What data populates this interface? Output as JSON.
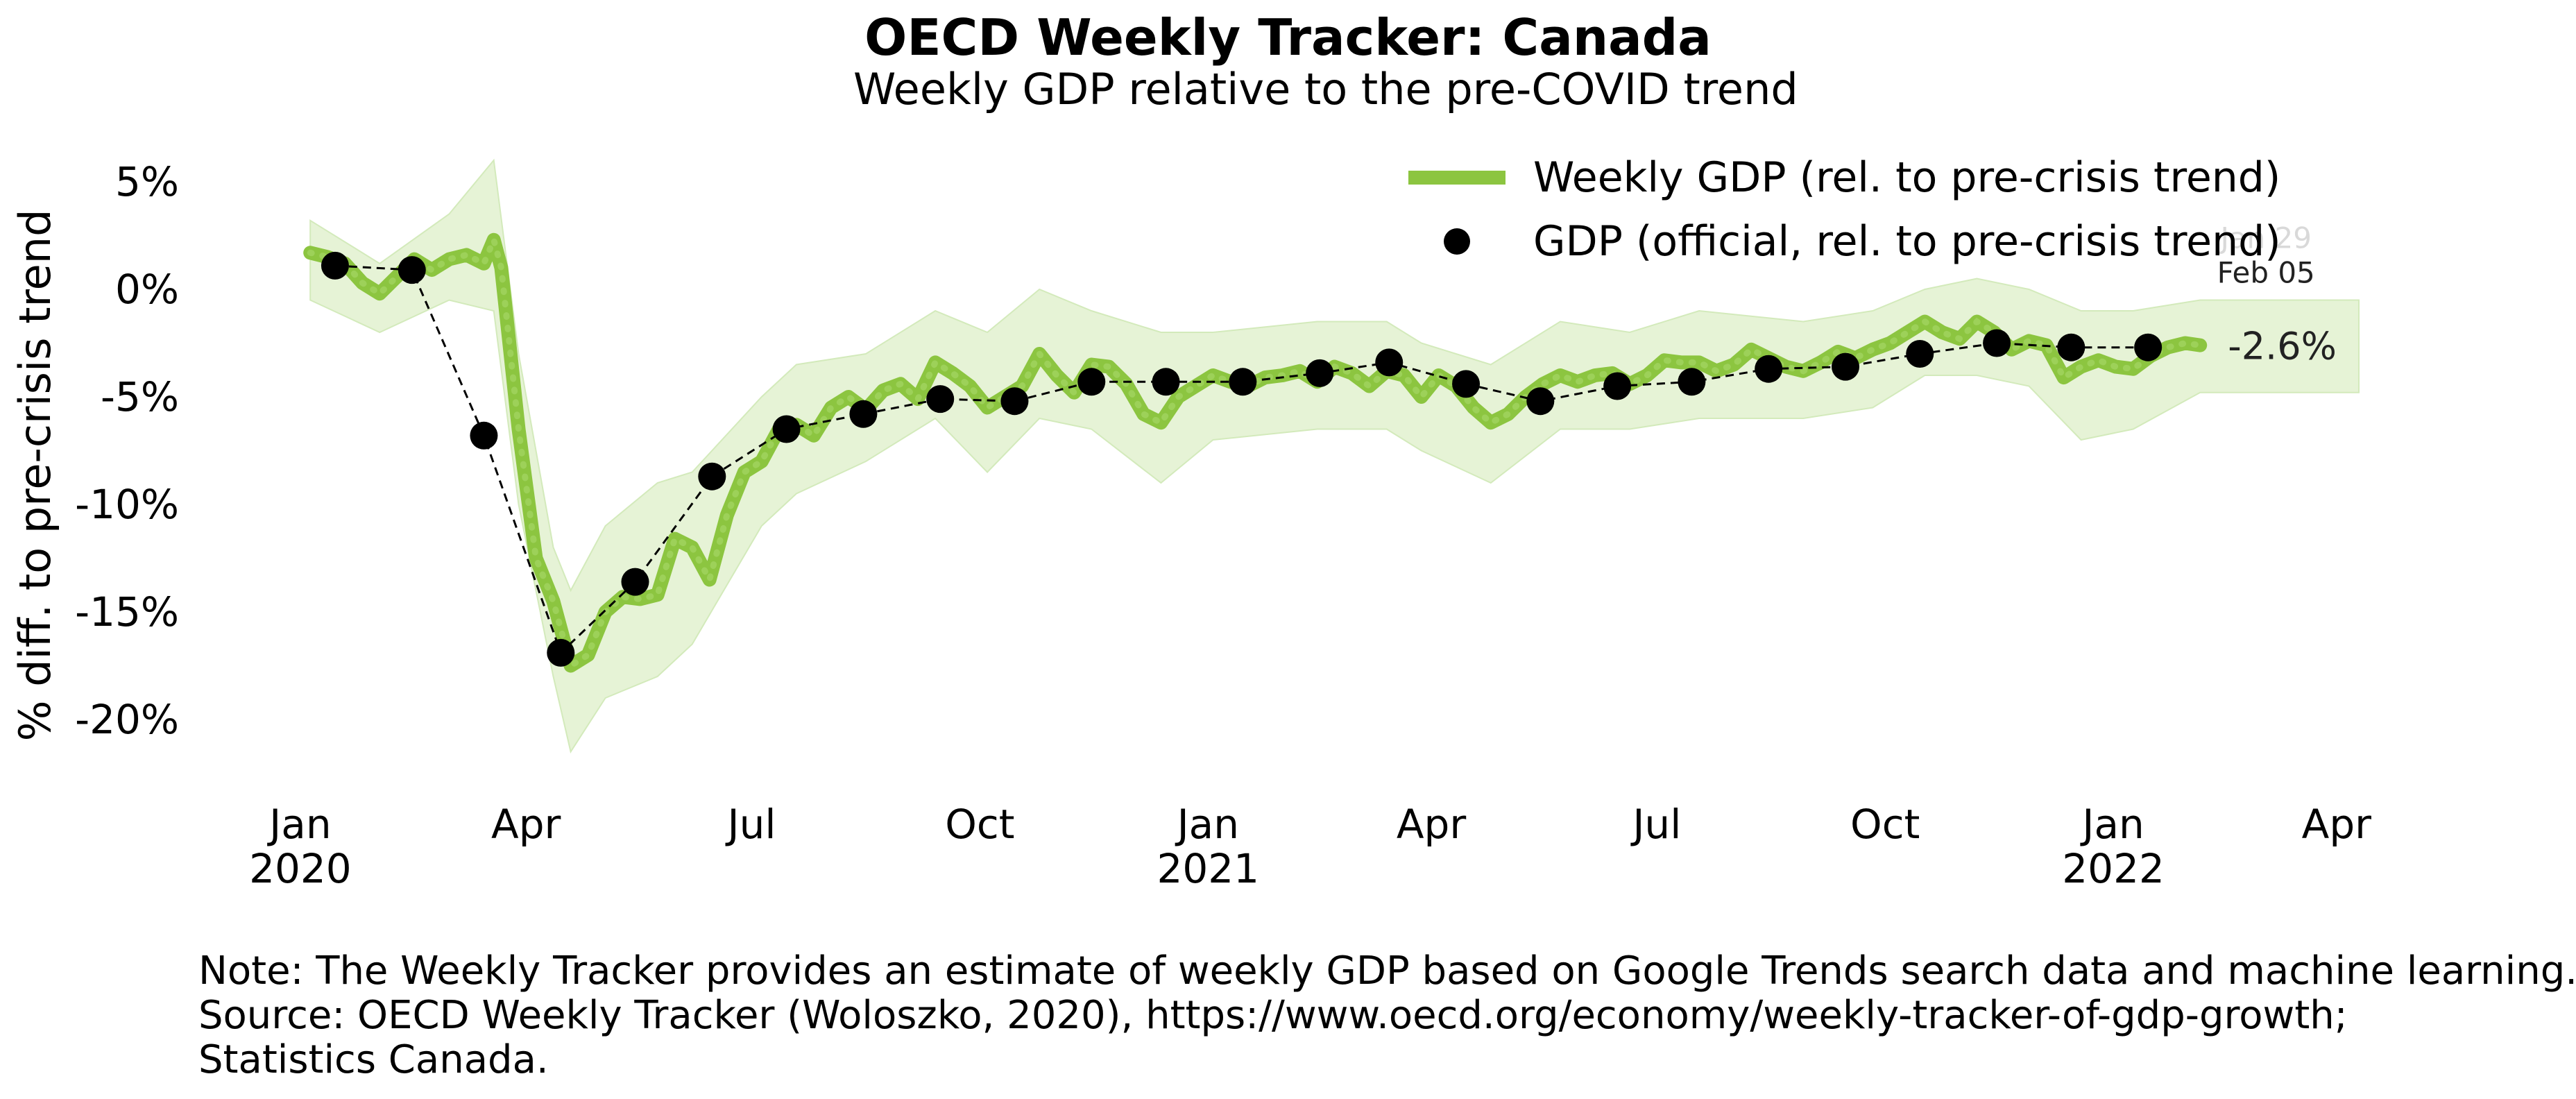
{
  "title": "OECD Weekly Tracker: Canada",
  "subtitle": "Weekly GDP relative to the pre-COVID trend",
  "notes": [
    "Note: The Weekly Tracker provides an estimate of weekly GDP based on Google Trends search data and machine learning.",
    "Source: OECD Weekly Tracker (Woloszko, 2020), https://www.oecd.org/economy/weekly-tracker-of-gdp-growth;",
    "Statistics Canada."
  ],
  "colors": {
    "weekly": "#8cc540",
    "band": "#e6f3d6",
    "official": "#000000"
  },
  "chart_data": {
    "type": "line",
    "ylabel": "% diff. to pre-crisis trend",
    "ylim": [
      -23,
      7
    ],
    "xlim": [
      "2019-12-20",
      "2022-04-10"
    ],
    "yticks": [
      5,
      0,
      -5,
      -10,
      -15,
      -20
    ],
    "ytick_labels": [
      "5%",
      "0%",
      "-5%",
      "-10%",
      "-15%",
      "-20%"
    ],
    "xticks": [
      {
        "date": "2020-01-01",
        "label": "Jan",
        "year": "2020"
      },
      {
        "date": "2020-04-01",
        "label": "Apr",
        "year": ""
      },
      {
        "date": "2020-07-01",
        "label": "Jul",
        "year": ""
      },
      {
        "date": "2020-10-01",
        "label": "Oct",
        "year": ""
      },
      {
        "date": "2021-01-01",
        "label": "Jan",
        "year": "2021"
      },
      {
        "date": "2021-04-01",
        "label": "Apr",
        "year": ""
      },
      {
        "date": "2021-07-01",
        "label": "Jul",
        "year": ""
      },
      {
        "date": "2021-10-01",
        "label": "Oct",
        "year": ""
      },
      {
        "date": "2022-01-01",
        "label": "Jan",
        "year": "2022"
      },
      {
        "date": "2022-04-01",
        "label": "Apr",
        "year": ""
      }
    ],
    "legend_position": "top-right",
    "series": [
      {
        "name": "Weekly GDP (rel. to pre-crisis trend)",
        "style": "thick-line",
        "points": [
          [
            "2020-01-05",
            1.7
          ],
          [
            "2020-01-12",
            1.5
          ],
          [
            "2020-01-19",
            1.2
          ],
          [
            "2020-01-26",
            0.3
          ],
          [
            "2020-02-02",
            -0.2
          ],
          [
            "2020-02-09",
            0.6
          ],
          [
            "2020-02-16",
            1.4
          ],
          [
            "2020-02-23",
            0.9
          ],
          [
            "2020-03-01",
            1.4
          ],
          [
            "2020-03-08",
            1.6
          ],
          [
            "2020-03-15",
            1.2
          ],
          [
            "2020-03-19",
            2.3
          ],
          [
            "2020-03-22",
            1.0
          ],
          [
            "2020-03-29",
            -6.5
          ],
          [
            "2020-04-05",
            -12.5
          ],
          [
            "2020-04-12",
            -14.5
          ],
          [
            "2020-04-19",
            -17.5
          ],
          [
            "2020-04-26",
            -17.0
          ],
          [
            "2020-05-03",
            -15.0
          ],
          [
            "2020-05-10",
            -14.3
          ],
          [
            "2020-05-17",
            -14.4
          ],
          [
            "2020-05-24",
            -14.2
          ],
          [
            "2020-05-31",
            -11.6
          ],
          [
            "2020-06-07",
            -12.0
          ],
          [
            "2020-06-14",
            -13.5
          ],
          [
            "2020-06-21",
            -10.5
          ],
          [
            "2020-06-28",
            -8.5
          ],
          [
            "2020-07-05",
            -8.0
          ],
          [
            "2020-07-12",
            -6.5
          ],
          [
            "2020-07-19",
            -6.3
          ],
          [
            "2020-07-26",
            -6.8
          ],
          [
            "2020-08-02",
            -5.5
          ],
          [
            "2020-08-09",
            -5.0
          ],
          [
            "2020-08-16",
            -5.6
          ],
          [
            "2020-08-23",
            -4.7
          ],
          [
            "2020-08-30",
            -4.4
          ],
          [
            "2020-09-06",
            -5.1
          ],
          [
            "2020-09-13",
            -3.4
          ],
          [
            "2020-09-20",
            -3.9
          ],
          [
            "2020-09-27",
            -4.5
          ],
          [
            "2020-10-04",
            -5.5
          ],
          [
            "2020-10-11",
            -5.0
          ],
          [
            "2020-10-18",
            -4.5
          ],
          [
            "2020-10-25",
            -3.0
          ],
          [
            "2020-11-01",
            -4.0
          ],
          [
            "2020-11-08",
            -4.8
          ],
          [
            "2020-11-15",
            -3.5
          ],
          [
            "2020-11-22",
            -3.6
          ],
          [
            "2020-11-29",
            -4.4
          ],
          [
            "2020-12-06",
            -5.8
          ],
          [
            "2020-12-13",
            -6.2
          ],
          [
            "2020-12-20",
            -5.0
          ],
          [
            "2020-12-27",
            -4.5
          ],
          [
            "2021-01-03",
            -4.0
          ],
          [
            "2021-01-10",
            -4.3
          ],
          [
            "2021-01-17",
            -4.5
          ],
          [
            "2021-01-24",
            -4.1
          ],
          [
            "2021-01-31",
            -4.0
          ],
          [
            "2021-02-07",
            -3.8
          ],
          [
            "2021-02-14",
            -4.3
          ],
          [
            "2021-02-21",
            -3.6
          ],
          [
            "2021-02-28",
            -3.9
          ],
          [
            "2021-03-07",
            -4.5
          ],
          [
            "2021-03-14",
            -3.8
          ],
          [
            "2021-03-21",
            -4.0
          ],
          [
            "2021-03-28",
            -5.0
          ],
          [
            "2021-04-04",
            -4.0
          ],
          [
            "2021-04-11",
            -4.5
          ],
          [
            "2021-04-18",
            -5.5
          ],
          [
            "2021-04-25",
            -6.2
          ],
          [
            "2021-05-02",
            -5.8
          ],
          [
            "2021-05-09",
            -5.0
          ],
          [
            "2021-05-16",
            -4.4
          ],
          [
            "2021-05-23",
            -4.0
          ],
          [
            "2021-05-30",
            -4.3
          ],
          [
            "2021-06-06",
            -4.0
          ],
          [
            "2021-06-13",
            -3.9
          ],
          [
            "2021-06-20",
            -4.4
          ],
          [
            "2021-06-27",
            -4.0
          ],
          [
            "2021-07-04",
            -3.3
          ],
          [
            "2021-07-11",
            -3.4
          ],
          [
            "2021-07-18",
            -3.4
          ],
          [
            "2021-07-25",
            -3.8
          ],
          [
            "2021-08-01",
            -3.5
          ],
          [
            "2021-08-08",
            -2.8
          ],
          [
            "2021-08-15",
            -3.2
          ],
          [
            "2021-08-22",
            -3.6
          ],
          [
            "2021-08-29",
            -3.8
          ],
          [
            "2021-09-05",
            -3.4
          ],
          [
            "2021-09-12",
            -2.9
          ],
          [
            "2021-09-19",
            -3.2
          ],
          [
            "2021-09-26",
            -2.8
          ],
          [
            "2021-10-03",
            -2.5
          ],
          [
            "2021-10-10",
            -2.0
          ],
          [
            "2021-10-17",
            -1.5
          ],
          [
            "2021-10-24",
            -2.0
          ],
          [
            "2021-10-31",
            -2.3
          ],
          [
            "2021-11-07",
            -1.5
          ],
          [
            "2021-11-14",
            -2.0
          ],
          [
            "2021-11-21",
            -2.8
          ],
          [
            "2021-11-28",
            -2.4
          ],
          [
            "2021-12-05",
            -2.6
          ],
          [
            "2021-12-12",
            -4.1
          ],
          [
            "2021-12-19",
            -3.6
          ],
          [
            "2021-12-26",
            -3.3
          ],
          [
            "2022-01-02",
            -3.6
          ],
          [
            "2022-01-09",
            -3.7
          ],
          [
            "2022-01-16",
            -3.1
          ],
          [
            "2022-01-23",
            -2.7
          ],
          [
            "2022-01-30",
            -2.5
          ],
          [
            "2022-02-05",
            -2.6
          ]
        ]
      },
      {
        "name": "GDP (official, rel. to pre-crisis trend)",
        "style": "dashed-markers",
        "points": [
          [
            "2020-01-15",
            1.1
          ],
          [
            "2020-02-15",
            0.9
          ],
          [
            "2020-03-15",
            -6.8
          ],
          [
            "2020-04-15",
            -16.9
          ],
          [
            "2020-05-15",
            -13.6
          ],
          [
            "2020-06-15",
            -8.7
          ],
          [
            "2020-07-15",
            -6.5
          ],
          [
            "2020-08-15",
            -5.8
          ],
          [
            "2020-09-15",
            -5.1
          ],
          [
            "2020-10-15",
            -5.2
          ],
          [
            "2020-11-15",
            -4.3
          ],
          [
            "2020-12-15",
            -4.3
          ],
          [
            "2021-01-15",
            -4.3
          ],
          [
            "2021-02-15",
            -3.9
          ],
          [
            "2021-03-15",
            -3.4
          ],
          [
            "2021-04-15",
            -4.4
          ],
          [
            "2021-05-15",
            -5.2
          ],
          [
            "2021-06-15",
            -4.5
          ],
          [
            "2021-07-15",
            -4.3
          ],
          [
            "2021-08-15",
            -3.7
          ],
          [
            "2021-09-15",
            -3.6
          ],
          [
            "2021-10-15",
            -3.0
          ],
          [
            "2021-11-15",
            -2.5
          ],
          [
            "2021-12-15",
            -2.7
          ],
          [
            "2022-01-15",
            -2.7
          ]
        ]
      }
    ],
    "band": {
      "points": [
        [
          "2020-01-05",
          -0.5,
          3.2
        ],
        [
          "2020-02-02",
          -2.0,
          1.2
        ],
        [
          "2020-03-01",
          -0.5,
          3.5
        ],
        [
          "2020-03-19",
          -1.0,
          6.0
        ],
        [
          "2020-03-29",
          -10.0,
          -3.0
        ],
        [
          "2020-04-12",
          -18.0,
          -12.0
        ],
        [
          "2020-04-19",
          -21.5,
          -14.0
        ],
        [
          "2020-05-03",
          -19.0,
          -11.0
        ],
        [
          "2020-05-24",
          -18.0,
          -9.0
        ],
        [
          "2020-06-07",
          -16.5,
          -8.5
        ],
        [
          "2020-07-05",
          -11.0,
          -5.0
        ],
        [
          "2020-07-19",
          -9.5,
          -3.5
        ],
        [
          "2020-08-16",
          -8.0,
          -3.0
        ],
        [
          "2020-09-13",
          -6.0,
          -1.0
        ],
        [
          "2020-10-04",
          -8.5,
          -2.0
        ],
        [
          "2020-10-25",
          -6.0,
          0.0
        ],
        [
          "2020-11-15",
          -6.5,
          -1.0
        ],
        [
          "2020-12-13",
          -9.0,
          -2.0
        ],
        [
          "2021-01-03",
          -7.0,
          -2.0
        ],
        [
          "2021-02-14",
          -6.5,
          -1.5
        ],
        [
          "2021-03-14",
          -6.5,
          -1.5
        ],
        [
          "2021-03-28",
          -7.5,
          -2.5
        ],
        [
          "2021-04-25",
          -9.0,
          -3.5
        ],
        [
          "2021-05-23",
          -6.5,
          -1.5
        ],
        [
          "2021-06-20",
          -6.5,
          -2.0
        ],
        [
          "2021-07-18",
          -6.0,
          -1.0
        ],
        [
          "2021-08-29",
          -6.0,
          -1.5
        ],
        [
          "2021-09-26",
          -5.5,
          -1.0
        ],
        [
          "2021-10-17",
          -4.0,
          0.0
        ],
        [
          "2021-11-07",
          -4.0,
          0.5
        ],
        [
          "2021-11-28",
          -4.5,
          0.0
        ],
        [
          "2021-12-19",
          -7.0,
          -1.0
        ],
        [
          "2022-01-09",
          -6.5,
          -1.0
        ],
        [
          "2022-02-05",
          -4.8,
          -0.5
        ],
        [
          "2022-04-10",
          -4.8,
          -0.5
        ]
      ]
    },
    "annotations": [
      {
        "text": "-2.6%",
        "date": "2022-02-05",
        "y": -2.6
      },
      {
        "text": "Feb 05",
        "date": "2022-02-05",
        "y": -2.6
      },
      {
        "text": "Jan 29",
        "date": "2022-02-05",
        "y": -2.6
      }
    ]
  }
}
